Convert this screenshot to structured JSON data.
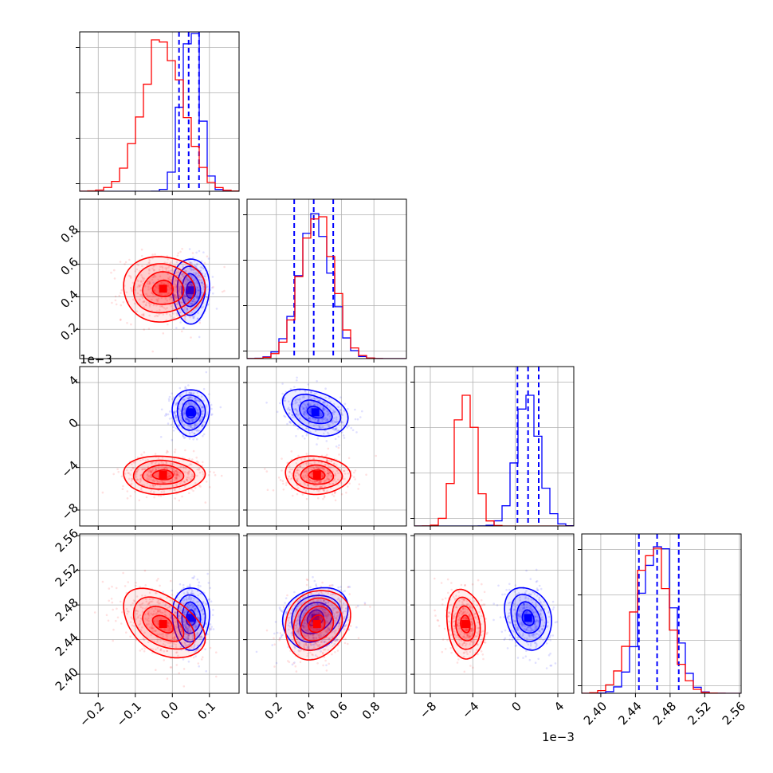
{
  "chart_data": {
    "type": "corner",
    "parameters": [
      {
        "range": [
          -0.25,
          0.18
        ],
        "ticks": [
          -0.2,
          -0.1,
          0.0,
          0.1
        ],
        "tick_labels": [
          "−0.2",
          "−0.1",
          "0.0",
          "0.1"
        ]
      },
      {
        "range": [
          0.02,
          1.0
        ],
        "ticks": [
          0.2,
          0.4,
          0.6,
          0.8
        ],
        "tick_labels": [
          "0.2",
          "0.4",
          "0.6",
          "0.8"
        ]
      },
      {
        "range": [
          -9.5,
          5.5
        ],
        "ticks": [
          -8,
          -4,
          0,
          4
        ],
        "tick_labels": [
          "−8",
          "−4",
          "0",
          "4"
        ],
        "offset_text": "1e−3"
      },
      {
        "range": [
          2.378,
          2.562
        ],
        "ticks": [
          2.4,
          2.44,
          2.48,
          2.52,
          2.56
        ],
        "tick_labels": [
          "2.40",
          "2.44",
          "2.48",
          "2.52",
          "2.56"
        ]
      }
    ],
    "grid": true,
    "series": [
      {
        "color": "#0000ff",
        "means": [
          0.05,
          0.44,
          1.2,
          2.465
        ],
        "stds": [
          0.025,
          0.1,
          1.1,
          0.018
        ],
        "correlations": [
          [
            1,
            0,
            0,
            0
          ],
          [
            0,
            1,
            -0.35,
            0.2
          ],
          [
            0,
            -0.35,
            1,
            -0.2
          ],
          [
            0,
            0.2,
            -0.2,
            1
          ]
        ],
        "quantile_lines": [
          [
            0.018,
            0.044,
            0.072
          ],
          [
            0.31,
            0.43,
            0.55
          ],
          [
            0.2,
            1.2,
            2.2
          ],
          [
            2.444,
            2.465,
            2.49
          ]
        ],
        "hist_peaks": [
          0.99,
          0.91,
          0.82,
          0.92
        ]
      },
      {
        "color": "#ff0000",
        "means": [
          -0.025,
          0.45,
          -4.7,
          2.458
        ],
        "stds": [
          0.055,
          0.1,
          0.9,
          0.02
        ],
        "correlations": [
          [
            1,
            0,
            0,
            -0.45
          ],
          [
            0,
            1,
            -0.05,
            0.2
          ],
          [
            0,
            -0.05,
            1,
            -0.15
          ],
          [
            -0.45,
            0.2,
            -0.15,
            1
          ]
        ],
        "quantile_lines": [],
        "hist_peaks": [
          0.95,
          0.89,
          0.82,
          0.91
        ]
      }
    ]
  }
}
